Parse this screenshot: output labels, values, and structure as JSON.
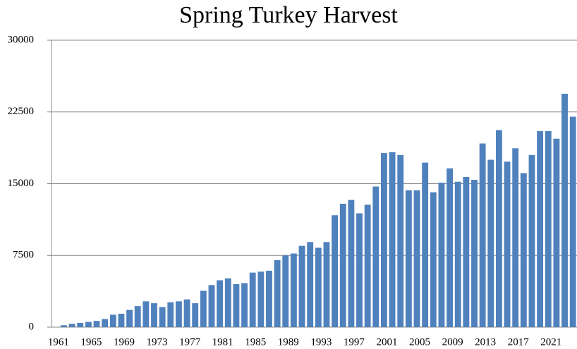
{
  "chart_data": {
    "type": "bar",
    "title": "Spring Turkey Harvest",
    "categories": [
      "1961",
      null,
      null,
      null,
      "1965",
      null,
      null,
      null,
      "1969",
      null,
      null,
      null,
      "1973",
      null,
      null,
      null,
      "1977",
      null,
      null,
      null,
      "1981",
      null,
      null,
      null,
      "1985",
      null,
      null,
      null,
      "1989",
      null,
      null,
      null,
      "1993",
      null,
      null,
      null,
      "1997",
      null,
      null,
      null,
      "2001",
      null,
      null,
      null,
      "2005",
      null,
      null,
      null,
      "2009",
      null,
      null,
      null,
      "2013",
      null,
      null,
      null,
      "2017",
      null,
      null,
      null,
      "2021",
      null,
      null,
      null
    ],
    "values": [
      0,
      200,
      350,
      450,
      550,
      650,
      850,
      1300,
      1400,
      1800,
      2200,
      2700,
      2500,
      2100,
      2600,
      2700,
      2900,
      2500,
      3800,
      4400,
      4900,
      5100,
      4500,
      4600,
      5700,
      5800,
      5900,
      7000,
      7500,
      7700,
      8500,
      8900,
      8300,
      8900,
      11700,
      12900,
      13300,
      11900,
      12800,
      14700,
      18200,
      18300,
      18000,
      14300,
      14300,
      17200,
      14100,
      15100,
      16600,
      15200,
      15700,
      15400,
      19200,
      17500,
      20600,
      17300,
      18700,
      16100,
      18000,
      20500,
      20500,
      19700,
      24400,
      22000
    ],
    "color": "#4f81bd",
    "ylim": [
      0,
      30000
    ],
    "yticks": [
      0,
      7500,
      15000,
      22500,
      30000
    ],
    "grid": true
  }
}
